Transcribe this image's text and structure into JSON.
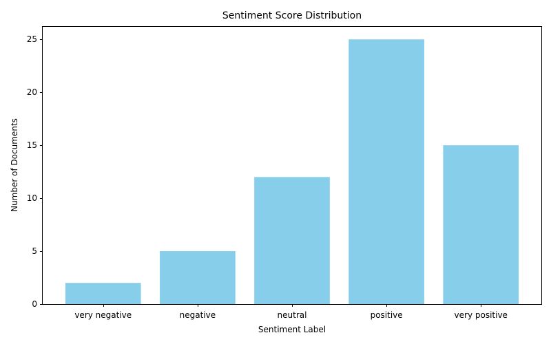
{
  "chart_data": {
    "type": "bar",
    "title": "Sentiment Score Distribution",
    "xlabel": "Sentiment Label",
    "ylabel": "Number of Documents",
    "categories": [
      "very negative",
      "negative",
      "neutral",
      "positive",
      "very positive"
    ],
    "values": [
      2,
      5,
      12,
      25,
      15
    ],
    "ylim": [
      0,
      26.25
    ],
    "yticks": [
      0,
      5,
      10,
      15,
      20,
      25
    ],
    "bar_color": "#87CEEB",
    "grid": false,
    "legend": "none"
  }
}
